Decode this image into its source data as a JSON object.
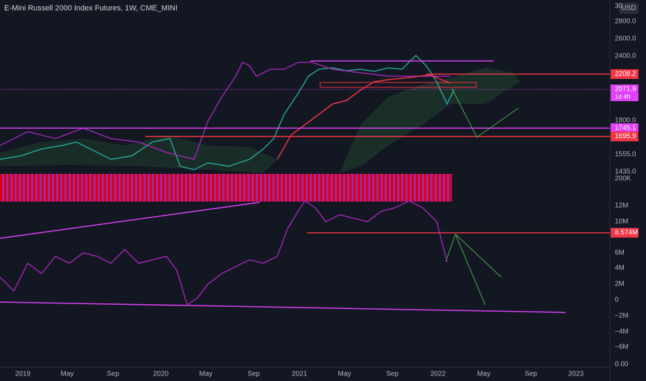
{
  "header": {
    "title": "E-Mini Russell 2000 Index Futures, 1W, CME_MINI",
    "currency": "USD"
  },
  "price_axis": [
    "30",
    "2800.0",
    "2600.0",
    "2400.0",
    "1800.0",
    "1555.0",
    "1435.0"
  ],
  "price_badges": [
    {
      "label": "2208.2",
      "color": "#f23645"
    },
    {
      "label": "2071.9",
      "sub": "1d 4h",
      "color": "#e040fb"
    },
    {
      "label": "1745.1",
      "color": "#e040fb"
    },
    {
      "label": "1695.9",
      "color": "#f23645"
    }
  ],
  "volume_axis": [
    "200K"
  ],
  "indicator_axis": [
    "12M",
    "10M",
    "6M",
    "4M",
    "2M",
    "0",
    "−2M",
    "−4M",
    "−6M"
  ],
  "indicator_badge": {
    "label": "8.574M",
    "color": "#f23645"
  },
  "oscillator_axis": [
    "0.00"
  ],
  "time_axis": [
    "2019",
    "May",
    "Sep",
    "2020",
    "May",
    "Sep",
    "2021",
    "May",
    "Sep",
    "2022",
    "May",
    "Sep",
    "2023"
  ]
}
